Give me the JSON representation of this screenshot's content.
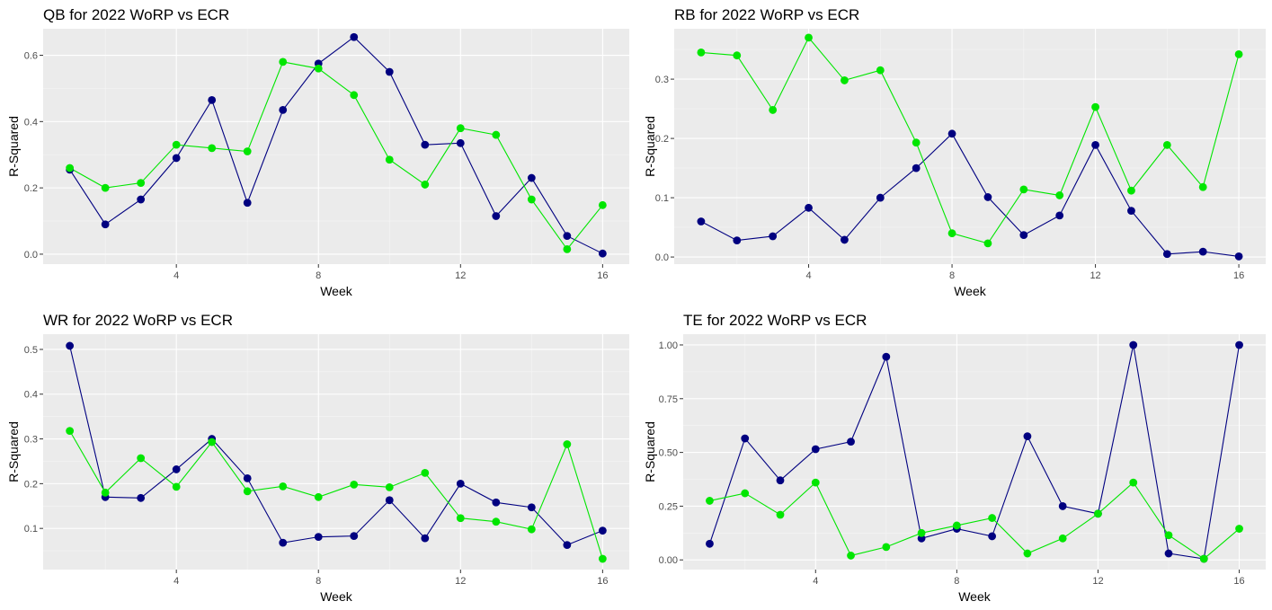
{
  "colors": {
    "panel_bg": "#ebebeb",
    "grid_major": "#ffffff",
    "grid_minor": "#f5f5f5",
    "tick_text": "#4d4d4d",
    "series_worp": "#000080",
    "series_ecr": "#00e600"
  },
  "chart_data": [
    {
      "type": "line",
      "title": "QB for 2022 WoRP vs ECR",
      "xlabel": "Week",
      "ylabel": "R-Squared",
      "x": [
        1,
        2,
        3,
        4,
        5,
        6,
        7,
        8,
        9,
        10,
        11,
        12,
        13,
        14,
        15,
        16
      ],
      "xlim": [
        0.25,
        16.75
      ],
      "ylim": [
        -0.03,
        0.68
      ],
      "xticks": [
        4,
        8,
        12,
        16
      ],
      "xtick_labels": [
        "4",
        "8",
        "12",
        "16"
      ],
      "yticks": [
        0,
        0.2,
        0.4,
        0.6
      ],
      "ytick_labels": [
        "0.0",
        "0.2",
        "0.4",
        "0.6"
      ],
      "grid": true,
      "legend": "none",
      "series": [
        {
          "color": "#000080",
          "values": [
            0.255,
            0.09,
            0.165,
            0.29,
            0.465,
            0.155,
            0.435,
            0.575,
            0.655,
            0.55,
            0.33,
            0.335,
            0.115,
            0.23,
            0.055,
            0.002
          ]
        },
        {
          "color": "#00e600",
          "values": [
            0.26,
            0.2,
            0.215,
            0.33,
            0.32,
            0.31,
            0.58,
            0.56,
            0.48,
            0.285,
            0.21,
            0.38,
            0.36,
            0.165,
            0.015,
            0.148
          ]
        }
      ]
    },
    {
      "type": "line",
      "title": "RB for 2022 WoRP vs ECR",
      "xlabel": "Week",
      "ylabel": "R-Squared",
      "x": [
        1,
        2,
        3,
        4,
        5,
        6,
        7,
        8,
        9,
        10,
        11,
        12,
        13,
        14,
        15,
        16
      ],
      "xlim": [
        0.25,
        16.75
      ],
      "ylim": [
        -0.012,
        0.385
      ],
      "xticks": [
        4,
        8,
        12,
        16
      ],
      "xtick_labels": [
        "4",
        "8",
        "12",
        "16"
      ],
      "yticks": [
        0,
        0.1,
        0.2,
        0.3
      ],
      "ytick_labels": [
        "0.0",
        "0.1",
        "0.2",
        "0.3"
      ],
      "grid": true,
      "legend": "none",
      "series": [
        {
          "color": "#000080",
          "values": [
            0.06,
            0.028,
            0.035,
            0.083,
            0.029,
            0.1,
            0.15,
            0.208,
            0.101,
            0.037,
            0.07,
            0.189,
            0.078,
            0.005,
            0.009,
            0.001
          ]
        },
        {
          "color": "#00e600",
          "values": [
            0.345,
            0.34,
            0.248,
            0.37,
            0.298,
            0.315,
            0.193,
            0.04,
            0.023,
            0.114,
            0.104,
            0.253,
            0.112,
            0.189,
            0.118,
            0.342
          ]
        }
      ]
    },
    {
      "type": "line",
      "title": "WR for 2022 WoRP vs ECR",
      "xlabel": "Week",
      "ylabel": "R-Squared",
      "x": [
        1,
        2,
        3,
        4,
        5,
        6,
        7,
        8,
        9,
        10,
        11,
        12,
        13,
        14,
        15,
        16
      ],
      "xlim": [
        0.25,
        16.75
      ],
      "ylim": [
        0.008,
        0.534
      ],
      "xticks": [
        4,
        8,
        12,
        16
      ],
      "xtick_labels": [
        "4",
        "8",
        "12",
        "16"
      ],
      "yticks": [
        0.1,
        0.2,
        0.3,
        0.4,
        0.5
      ],
      "ytick_labels": [
        "0.1",
        "0.2",
        "0.3",
        "0.4",
        "0.5"
      ],
      "grid": true,
      "legend": "none",
      "series": [
        {
          "color": "#000080",
          "values": [
            0.508,
            0.17,
            0.168,
            0.232,
            0.3,
            0.212,
            0.068,
            0.081,
            0.083,
            0.163,
            0.078,
            0.2,
            0.158,
            0.147,
            0.063,
            0.095
          ]
        },
        {
          "color": "#00e600",
          "values": [
            0.318,
            0.18,
            0.257,
            0.193,
            0.293,
            0.183,
            0.194,
            0.17,
            0.198,
            0.192,
            0.224,
            0.123,
            0.115,
            0.098,
            0.288,
            0.032
          ]
        }
      ]
    },
    {
      "type": "line",
      "title": "TE for 2022 WoRP vs ECR",
      "xlabel": "Week",
      "ylabel": "R-Squared",
      "x": [
        1,
        2,
        3,
        4,
        5,
        6,
        7,
        8,
        9,
        10,
        11,
        12,
        13,
        14,
        15,
        16
      ],
      "xlim": [
        0.25,
        16.75
      ],
      "ylim": [
        -0.045,
        1.05
      ],
      "xticks": [
        4,
        8,
        12,
        16
      ],
      "xtick_labels": [
        "4",
        "8",
        "12",
        "16"
      ],
      "yticks": [
        0,
        0.25,
        0.5,
        0.75,
        1.0
      ],
      "ytick_labels": [
        "0.00",
        "0.25",
        "0.50",
        "0.75",
        "1.00"
      ],
      "grid": true,
      "legend": "none",
      "series": [
        {
          "color": "#000080",
          "values": [
            0.075,
            0.565,
            0.37,
            0.515,
            0.55,
            0.945,
            0.1,
            0.145,
            0.11,
            0.575,
            0.25,
            0.215,
            1.0,
            0.03,
            0.005,
            1.0
          ]
        },
        {
          "color": "#00e600",
          "values": [
            0.275,
            0.31,
            0.21,
            0.36,
            0.02,
            0.06,
            0.125,
            0.16,
            0.195,
            0.03,
            0.1,
            0.215,
            0.36,
            0.115,
            0.005,
            0.145
          ]
        }
      ]
    }
  ]
}
